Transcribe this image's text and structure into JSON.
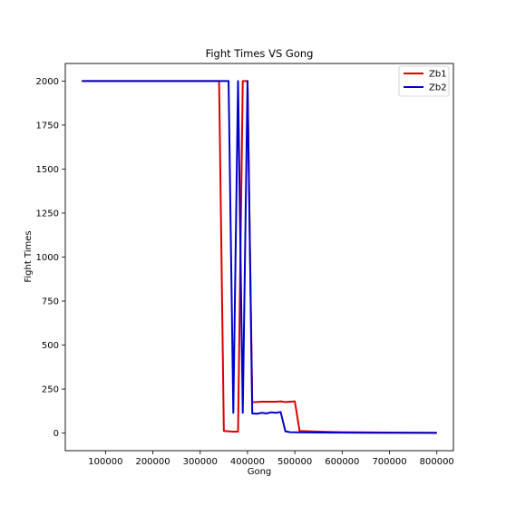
{
  "chart_data": {
    "type": "line",
    "title": "Fight Times VS Gong",
    "xlabel": "Gong",
    "ylabel": "Fight Times",
    "xlim": [
      15000,
      835000
    ],
    "ylim": [
      -100,
      2100
    ],
    "xticks": [
      100000,
      200000,
      300000,
      400000,
      500000,
      600000,
      700000,
      800000
    ],
    "xtick_labels": [
      "100000",
      "200000",
      "300000",
      "400000",
      "500000",
      "600000",
      "700000",
      "800000"
    ],
    "yticks": [
      0,
      250,
      500,
      750,
      1000,
      1250,
      1500,
      1750,
      2000
    ],
    "ytick_labels": [
      "0",
      "250",
      "500",
      "750",
      "1000",
      "1250",
      "1500",
      "1750",
      "2000"
    ],
    "grid": false,
    "legend_position": "top-right",
    "series": [
      {
        "name": "Zb1",
        "color": "#dd0000",
        "points": [
          [
            50000,
            2000
          ],
          [
            100000,
            2000
          ],
          [
            200000,
            2000
          ],
          [
            300000,
            2000
          ],
          [
            340000,
            2000
          ],
          [
            350000,
            12
          ],
          [
            370000,
            8
          ],
          [
            380000,
            8
          ],
          [
            390000,
            2000
          ],
          [
            400000,
            2000
          ],
          [
            410000,
            175
          ],
          [
            430000,
            178
          ],
          [
            450000,
            178
          ],
          [
            460000,
            178
          ],
          [
            470000,
            180
          ],
          [
            480000,
            176
          ],
          [
            490000,
            178
          ],
          [
            500000,
            180
          ],
          [
            510000,
            12
          ],
          [
            550000,
            8
          ],
          [
            600000,
            5
          ],
          [
            700000,
            3
          ],
          [
            800000,
            2
          ]
        ]
      },
      {
        "name": "Zb2",
        "color": "#0000cc",
        "points": [
          [
            50000,
            2000
          ],
          [
            100000,
            2000
          ],
          [
            200000,
            2000
          ],
          [
            300000,
            2000
          ],
          [
            360000,
            2000
          ],
          [
            370000,
            115
          ],
          [
            380000,
            2000
          ],
          [
            390000,
            115
          ],
          [
            400000,
            2000
          ],
          [
            410000,
            112
          ],
          [
            420000,
            110
          ],
          [
            430000,
            115
          ],
          [
            440000,
            112
          ],
          [
            450000,
            118
          ],
          [
            460000,
            115
          ],
          [
            470000,
            120
          ],
          [
            480000,
            10
          ],
          [
            490000,
            5
          ],
          [
            550000,
            3
          ],
          [
            650000,
            2
          ],
          [
            800000,
            1
          ]
        ]
      }
    ]
  }
}
